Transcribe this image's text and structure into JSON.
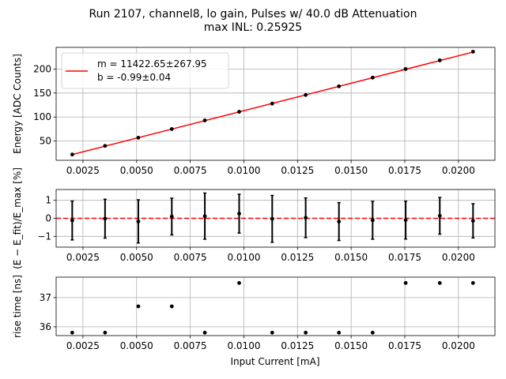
{
  "chart_data": {
    "title_line1": "Run 2107, channel8, lo gain, Pulses w/ 40.0 dB Attenuation",
    "title_line2": "max INL: 0.25925",
    "xlabel": "Input Current [mA]",
    "xlim": [
      0.00125,
      0.0217
    ],
    "xticks": [
      0.0025,
      0.005,
      0.0075,
      0.01,
      0.0125,
      0.015,
      0.0175,
      0.02
    ],
    "xtick_labels": [
      "0.0025",
      "0.0050",
      "0.0075",
      "0.0100",
      "0.0125",
      "0.0150",
      "0.0175",
      "0.0200"
    ],
    "x": [
      0.002,
      0.00353,
      0.00508,
      0.00664,
      0.00818,
      0.00978,
      0.01132,
      0.01288,
      0.01443,
      0.016,
      0.01754,
      0.01913,
      0.02068
    ],
    "panels": [
      {
        "type": "scatter",
        "ylabel": "Energy [ADC Counts]",
        "ylim": [
          10,
          245
        ],
        "yticks": [
          50,
          100,
          150,
          200
        ],
        "ytick_labels": [
          "50",
          "100",
          "150",
          "200"
        ],
        "y": [
          22,
          40,
          57,
          75,
          93,
          111,
          128,
          146,
          164,
          182,
          200,
          218,
          236
        ],
        "fit": {
          "m": 11422.65,
          "b": -0.99,
          "color": "#ff0000"
        },
        "legend": {
          "placement": "upper-left",
          "line1": "m = 11422.65±267.95",
          "line2": "b = -0.99±0.04"
        }
      },
      {
        "type": "scatter-errorbar",
        "ylabel": "(E − E_fit)/E_max [%]",
        "ylim": [
          -1.6,
          1.6
        ],
        "yticks": [
          -1,
          0,
          1
        ],
        "ytick_labels": [
          "−1",
          "0",
          "1"
        ],
        "y": [
          -0.12,
          -0.02,
          -0.17,
          0.1,
          0.12,
          0.26,
          -0.03,
          0.03,
          -0.18,
          -0.11,
          -0.1,
          0.14,
          -0.14
        ],
        "yerr": [
          1.08,
          1.08,
          1.2,
          1.02,
          1.28,
          1.08,
          1.3,
          1.1,
          1.05,
          1.05,
          1.05,
          1.02,
          0.95
        ],
        "reference_line": {
          "y": 0,
          "color": "#ff0000",
          "style": "dashed"
        }
      },
      {
        "type": "scatter",
        "ylabel": "rise time [ns]",
        "ylim": [
          35.7,
          37.7
        ],
        "yticks": [
          36,
          37
        ],
        "ytick_labels": [
          "36",
          "37"
        ],
        "y": [
          35.8,
          35.8,
          36.7,
          36.7,
          35.8,
          37.5,
          35.8,
          35.8,
          35.8,
          35.8,
          37.5,
          37.5,
          37.5
        ]
      }
    ],
    "grid": true
  }
}
